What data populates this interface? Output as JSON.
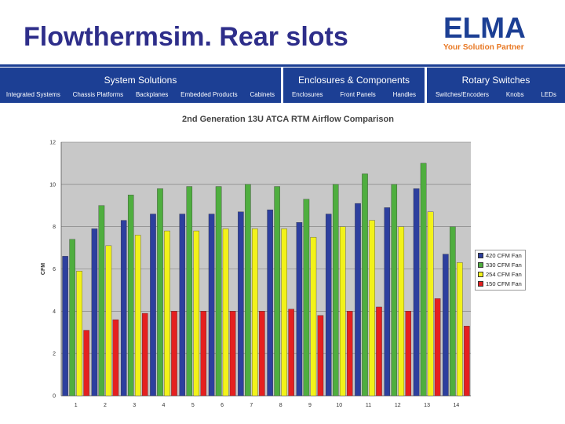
{
  "slide": {
    "title": "Flowthermsim. Rear slots"
  },
  "logo": {
    "word": "ELMA",
    "tagline": "Your Solution Partner"
  },
  "nav": {
    "groups": [
      {
        "title": "System Solutions",
        "items": [
          "Integrated Systems",
          "Chassis Platforms",
          "Backplanes",
          "Embedded Products",
          "Cabinets"
        ]
      },
      {
        "title": "Enclosures & Components",
        "items": [
          "Enclosures",
          "Front Panels",
          "Handles"
        ]
      },
      {
        "title": "Rotary Switches",
        "items": [
          "Switches/Encoders",
          "Knobs",
          "LEDs"
        ]
      }
    ]
  },
  "colors": {
    "title": "#2e2e8a",
    "nav_bg": "#1c3f94",
    "plot_bg": "#c8c8c8",
    "series": [
      "#2d3f9e",
      "#4fae3f",
      "#f2f21a",
      "#e52020"
    ]
  },
  "chart_data": {
    "type": "bar",
    "title": "2nd Generation 13U ATCA RTM Airflow Comparison",
    "xlabel": "",
    "ylabel": "CFM",
    "ylim": [
      0,
      12
    ],
    "yticks": [
      0,
      2,
      4,
      6,
      8,
      10,
      12
    ],
    "grid": true,
    "legend": "right",
    "categories": [
      "1",
      "2",
      "3",
      "4",
      "5",
      "6",
      "7",
      "8",
      "9",
      "10",
      "11",
      "12",
      "13",
      "14"
    ],
    "series": [
      {
        "name": "420 CFM Fan",
        "values": [
          6.6,
          7.9,
          8.3,
          8.6,
          8.6,
          8.6,
          8.7,
          8.8,
          8.2,
          8.6,
          9.1,
          8.9,
          9.8,
          6.7
        ]
      },
      {
        "name": "330 CFM Fan",
        "values": [
          7.4,
          9.0,
          9.5,
          9.8,
          9.9,
          9.9,
          10.0,
          9.9,
          9.3,
          10.0,
          10.5,
          10.0,
          11.0,
          8.0
        ]
      },
      {
        "name": "254 CFM Fan",
        "values": [
          5.9,
          7.1,
          7.6,
          7.8,
          7.8,
          7.9,
          7.9,
          7.9,
          7.5,
          8.0,
          8.3,
          8.0,
          8.7,
          6.3
        ]
      },
      {
        "name": "150 CFM Fan",
        "values": [
          3.1,
          3.6,
          3.9,
          4.0,
          4.0,
          4.0,
          4.0,
          4.1,
          3.8,
          4.0,
          4.2,
          4.0,
          4.6,
          3.3
        ]
      }
    ]
  }
}
